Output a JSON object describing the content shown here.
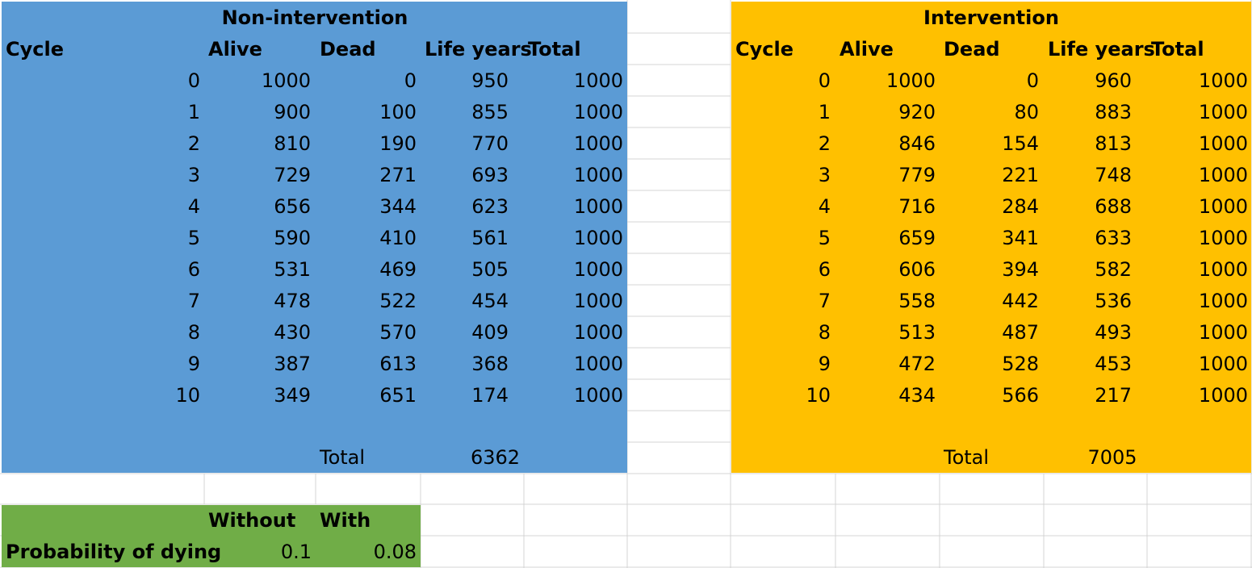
{
  "colors": {
    "non_intervention_fill": "#5b9bd5",
    "intervention_fill": "#ffc000",
    "probability_fill": "#70ad47",
    "gridline": "#d4d4d4"
  },
  "non_intervention": {
    "title": "Non-intervention",
    "headers": {
      "cycle": "Cycle",
      "alive": "Alive",
      "dead": "Dead",
      "life_years": "Life years",
      "total": "Total"
    },
    "rows": [
      [
        "0",
        "1000",
        "0",
        "950",
        "1000"
      ],
      [
        "1",
        "900",
        "100",
        "855",
        "1000"
      ],
      [
        "2",
        "810",
        "190",
        "770",
        "1000"
      ],
      [
        "3",
        "729",
        "271",
        "693",
        "1000"
      ],
      [
        "4",
        "656",
        "344",
        "623",
        "1000"
      ],
      [
        "5",
        "590",
        "410",
        "561",
        "1000"
      ],
      [
        "6",
        "531",
        "469",
        "505",
        "1000"
      ],
      [
        "7",
        "478",
        "522",
        "454",
        "1000"
      ],
      [
        "8",
        "430",
        "570",
        "409",
        "1000"
      ],
      [
        "9",
        "387",
        "613",
        "368",
        "1000"
      ],
      [
        "10",
        "349",
        "651",
        "174",
        "1000"
      ]
    ],
    "total_label": "Total",
    "total_value": "6362"
  },
  "intervention": {
    "title": "Intervention",
    "headers": {
      "cycle": "Cycle",
      "alive": "Alive",
      "dead": "Dead",
      "life_years": "Life years",
      "total": "Total"
    },
    "rows": [
      [
        "0",
        "1000",
        "0",
        "960",
        "1000"
      ],
      [
        "1",
        "920",
        "80",
        "883",
        "1000"
      ],
      [
        "2",
        "846",
        "154",
        "813",
        "1000"
      ],
      [
        "3",
        "779",
        "221",
        "748",
        "1000"
      ],
      [
        "4",
        "716",
        "284",
        "688",
        "1000"
      ],
      [
        "5",
        "659",
        "341",
        "633",
        "1000"
      ],
      [
        "6",
        "606",
        "394",
        "582",
        "1000"
      ],
      [
        "7",
        "558",
        "442",
        "536",
        "1000"
      ],
      [
        "8",
        "513",
        "487",
        "493",
        "1000"
      ],
      [
        "9",
        "472",
        "528",
        "453",
        "1000"
      ],
      [
        "10",
        "434",
        "566",
        "217",
        "1000"
      ]
    ],
    "total_label": "Total",
    "total_value": "7005"
  },
  "probability": {
    "without_label": "Without",
    "with_label": "With",
    "row_label": "Probability of dying",
    "without_value": "0.1",
    "with_value": "0.08"
  }
}
